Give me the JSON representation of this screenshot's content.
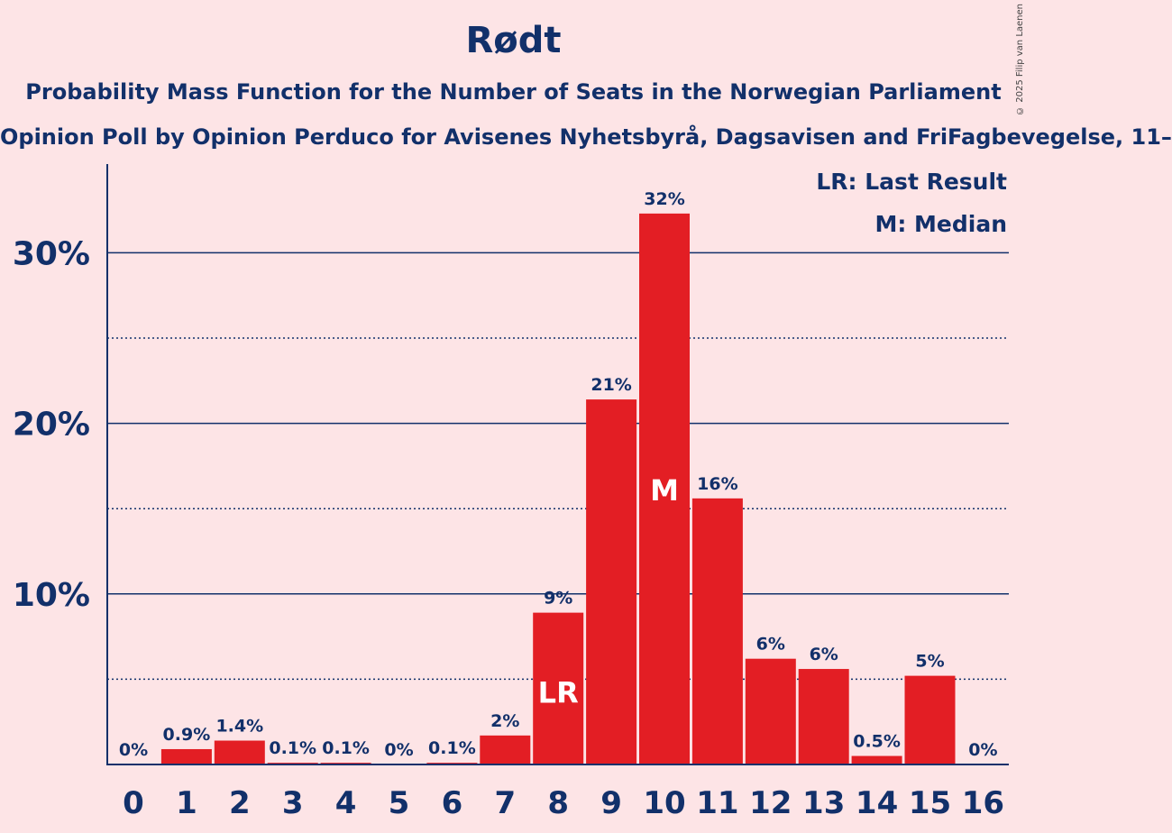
{
  "title": "Rødt",
  "subtitle": "Probability Mass Function for the Number of Seats in the Norwegian Parliament",
  "subtitle2": "Opinion Poll by Opinion Perduco for Avisenes Nyhetsbyrå, Dagsavisen and FriFagbevegelse, 11–",
  "copyright": "© 2025 Filip van Laenen",
  "legend": {
    "last_result": "LR: Last Result",
    "median": "M: Median"
  },
  "colors": {
    "bar": "#e31e24",
    "text": "#12306a",
    "background": "#fde4e6"
  },
  "chart_data": {
    "type": "bar",
    "categories": [
      "0",
      "1",
      "2",
      "3",
      "4",
      "5",
      "6",
      "7",
      "8",
      "9",
      "10",
      "11",
      "12",
      "13",
      "14",
      "15",
      "16"
    ],
    "values": [
      0,
      0.9,
      1.4,
      0.1,
      0.1,
      0,
      0.1,
      1.7,
      8.9,
      21.4,
      32.3,
      15.6,
      6.2,
      5.6,
      0.5,
      5.2,
      0
    ],
    "labels": [
      "0%",
      "0.9%",
      "1.4%",
      "0.1%",
      "0.1%",
      "0%",
      "0.1%",
      "2%",
      "9%",
      "21%",
      "32%",
      "16%",
      "6%",
      "6%",
      "0.5%",
      "5%",
      "0%"
    ],
    "ylim": [
      0,
      35
    ],
    "yticks": [
      10,
      20,
      30
    ],
    "ytick_labels": [
      "10%",
      "20%",
      "30%"
    ],
    "minor_gridlines": [
      5,
      15,
      25
    ],
    "last_result_category": "8",
    "last_result_marker": "LR",
    "median_category": "10",
    "median_marker": "M",
    "legend_position": "top-right"
  }
}
